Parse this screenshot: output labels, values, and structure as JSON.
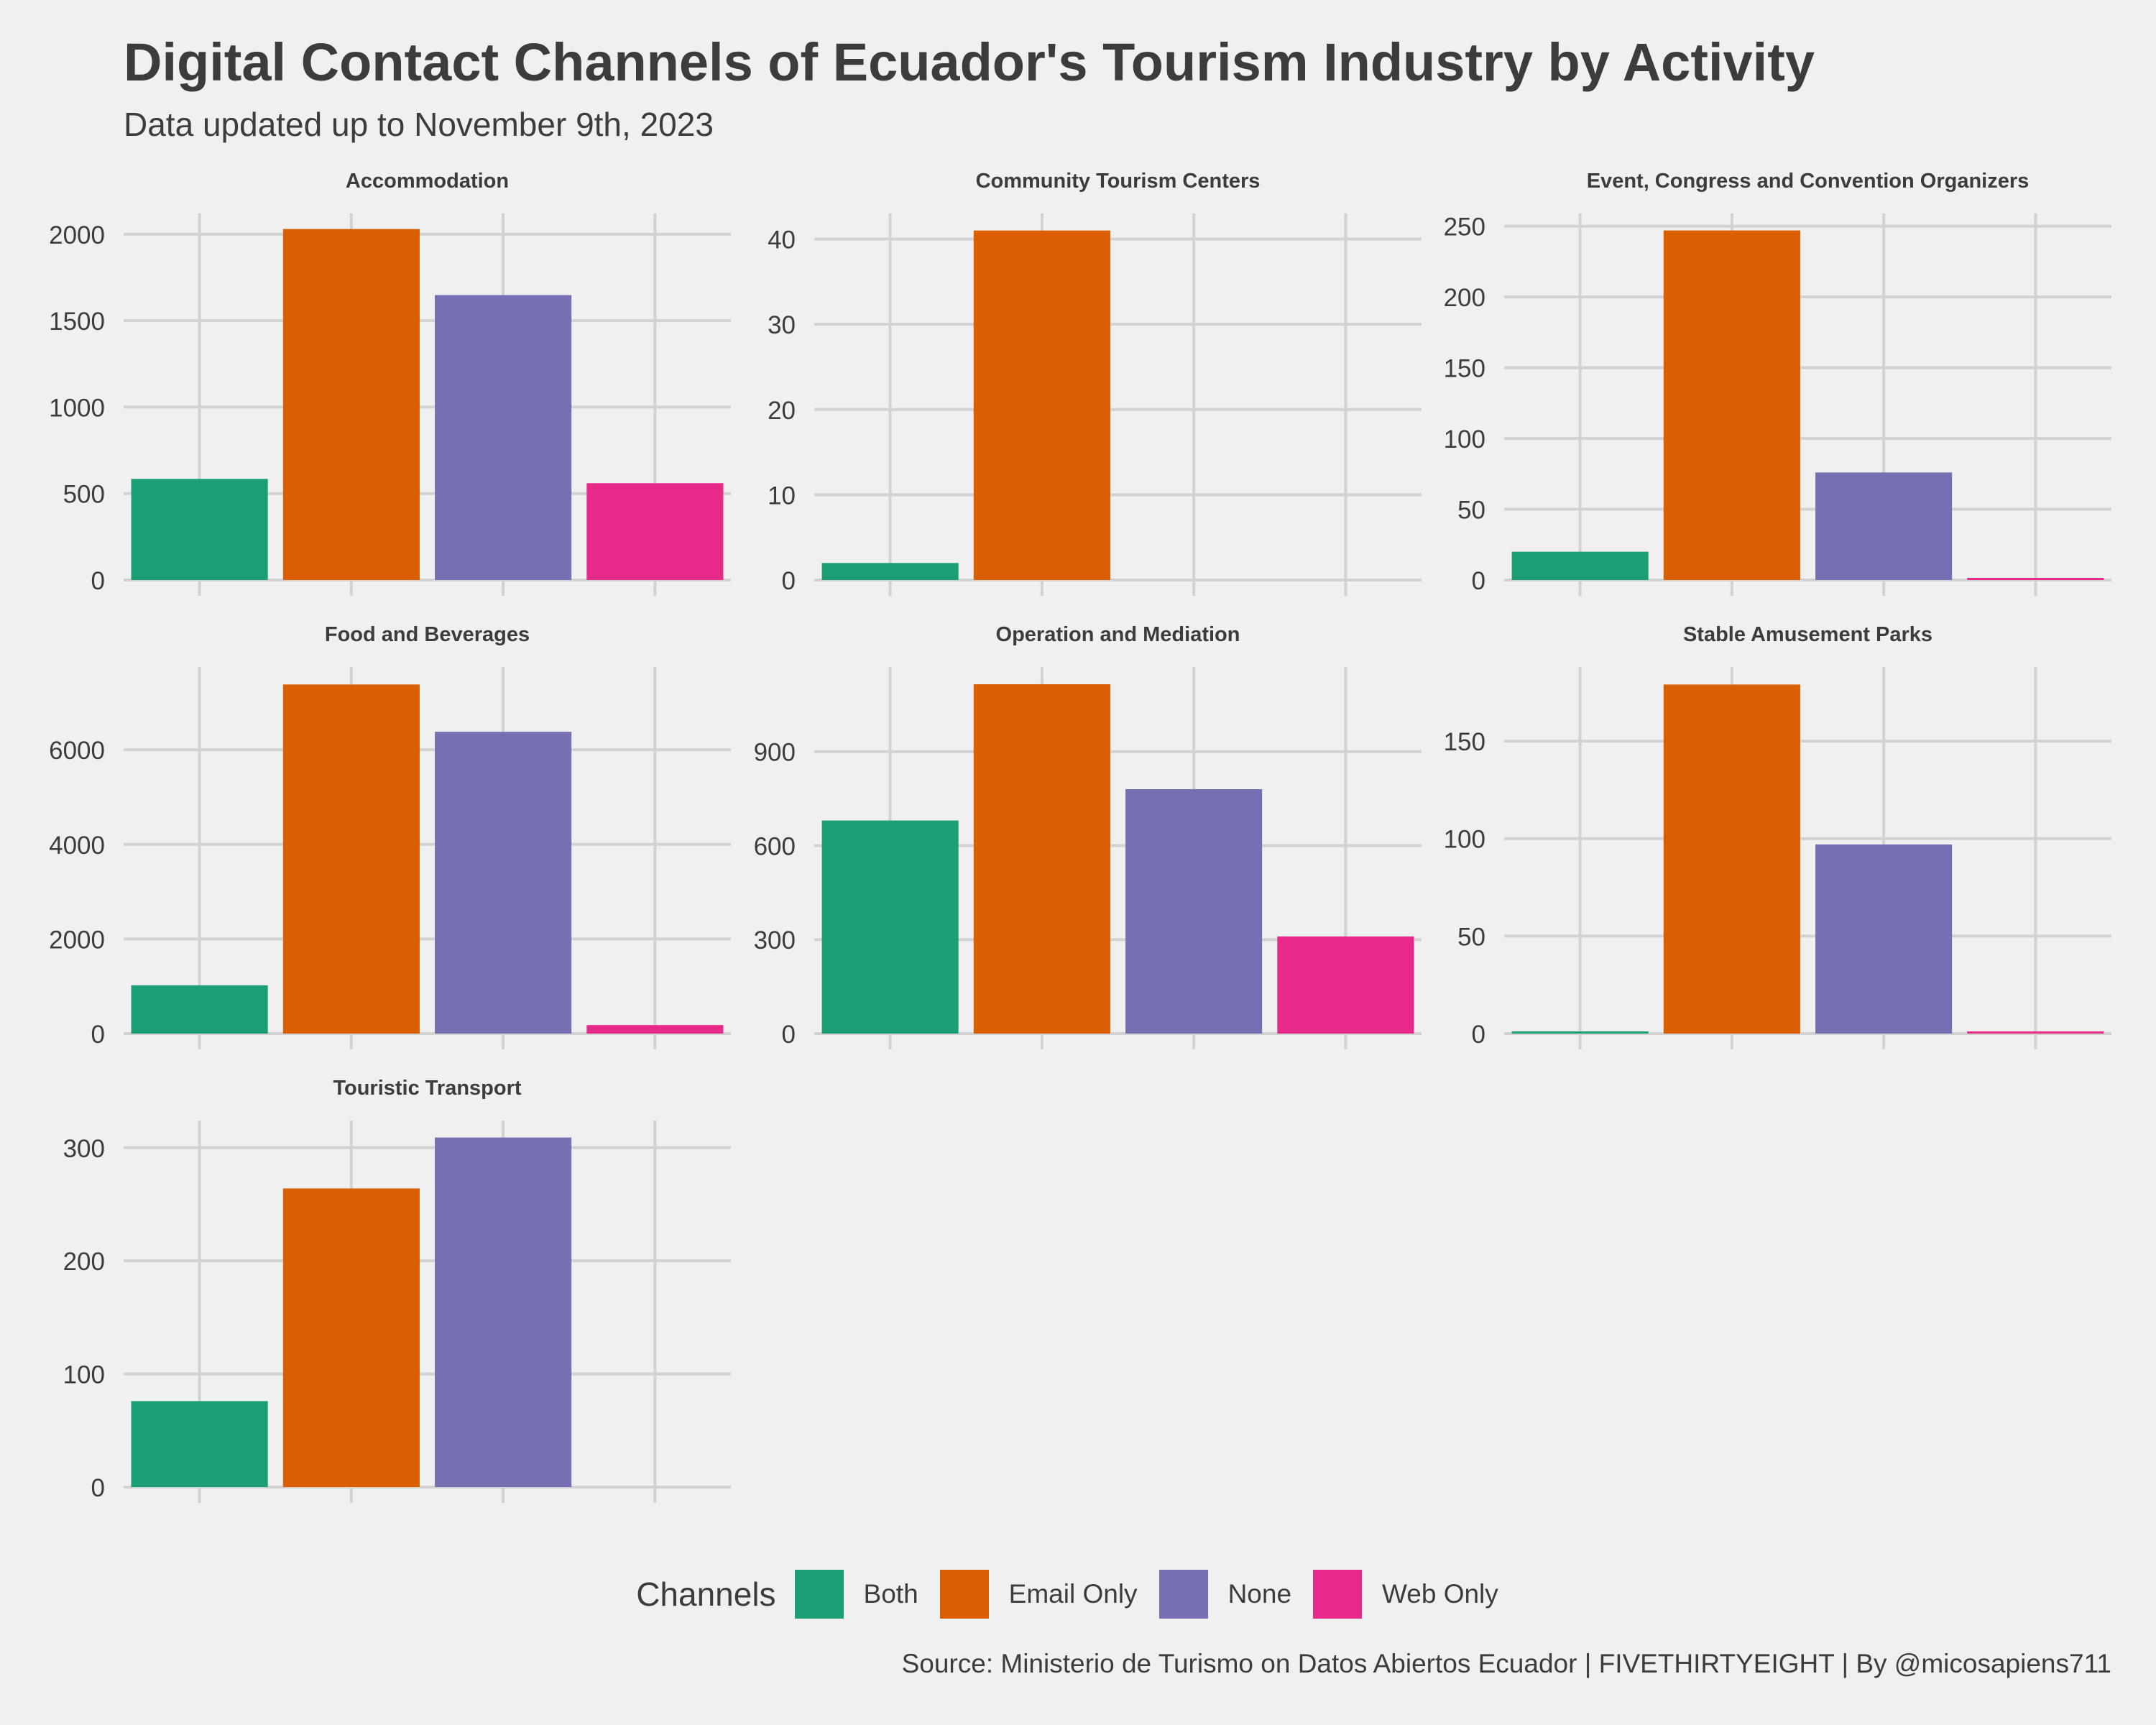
{
  "chart_data": {
    "type": "bar",
    "title": "Digital Contact Channels of Ecuador's Tourism Industry by Activity",
    "subtitle": "Data updated up to November 9th, 2023",
    "caption": "Source: Ministerio de Turismo on Datos Abiertos Ecuador  | FIVETHIRTYEIGHT | By @micosapiens711",
    "legend": {
      "title": "Channels",
      "position": "bottom",
      "items": [
        {
          "label": "Both",
          "color": "#1b9e77"
        },
        {
          "label": "Email Only",
          "color": "#d95f02"
        },
        {
          "label": "None",
          "color": "#7570b3"
        },
        {
          "label": "Web Only",
          "color": "#e7298a"
        }
      ]
    },
    "categories": [
      "Both",
      "Email Only",
      "None",
      "Web Only"
    ],
    "grid": true,
    "x_tick_labels_shown": false,
    "panels": [
      {
        "title": "Accommodation",
        "values": [
          585,
          2030,
          1648,
          560
        ],
        "ylim": [
          0,
          2120
        ],
        "yticks": [
          "0",
          "500",
          "1000",
          "1500",
          "2000"
        ]
      },
      {
        "title": "Community Tourism Centers",
        "values": [
          2,
          41,
          0,
          0
        ],
        "ylim": [
          0,
          43
        ],
        "yticks": [
          "0",
          "10",
          "20",
          "30",
          "40"
        ]
      },
      {
        "title": "Event, Congress and Convention Organizers",
        "values": [
          20,
          247,
          76,
          1
        ],
        "ylim": [
          0,
          259
        ],
        "yticks": [
          "0",
          "50",
          "100",
          "150",
          "200",
          "250"
        ]
      },
      {
        "title": "Food and Beverages",
        "values": [
          1020,
          7380,
          6380,
          180
        ],
        "ylim": [
          0,
          7750
        ],
        "yticks": [
          "0",
          "2000",
          "4000",
          "6000"
        ]
      },
      {
        "title": "Operation and Mediation",
        "values": [
          680,
          1115,
          780,
          310
        ],
        "ylim": [
          0,
          1170
        ],
        "yticks": [
          "0",
          "300",
          "600",
          "900"
        ]
      },
      {
        "title": "Stable Amusement Parks",
        "values": [
          1,
          179,
          97,
          1
        ],
        "ylim": [
          0,
          188
        ],
        "yticks": [
          "0",
          "50",
          "100",
          "150"
        ]
      },
      {
        "title": "Touristic Transport",
        "values": [
          76,
          264,
          309,
          0
        ],
        "ylim": [
          0,
          324
        ],
        "yticks": [
          "0",
          "100",
          "200",
          "300"
        ]
      }
    ]
  }
}
